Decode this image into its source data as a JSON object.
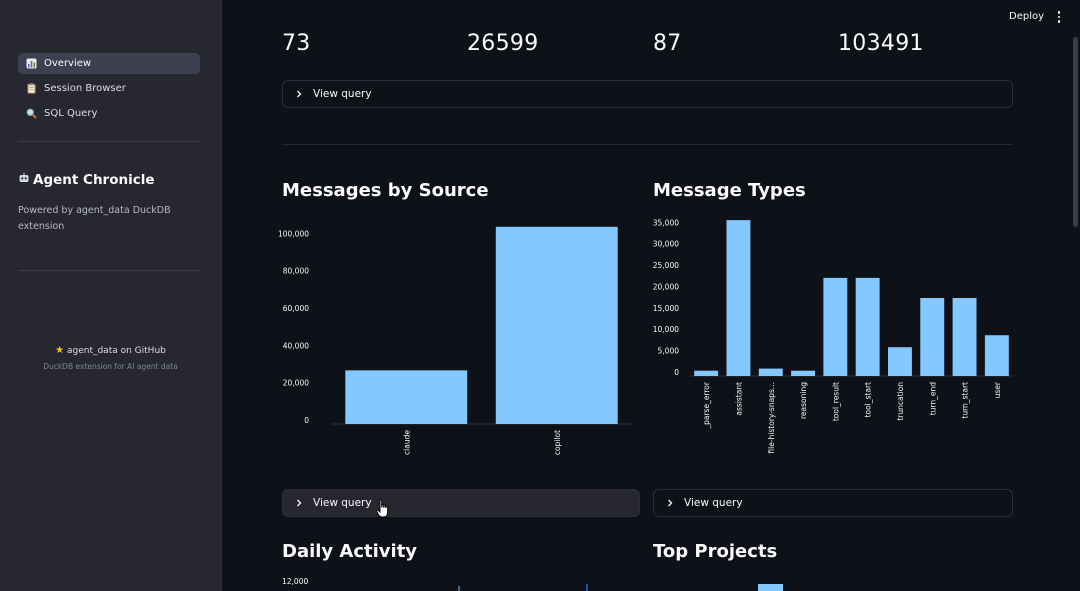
{
  "sidebar": {
    "nav": [
      {
        "label": "Overview",
        "icon": "chart-icon",
        "active": true
      },
      {
        "label": "Session Browser",
        "icon": "clipboard-icon",
        "active": false
      },
      {
        "label": "SQL Query",
        "icon": "magnifier-icon",
        "active": false
      }
    ],
    "brand_title": "Agent Chronicle",
    "brand_icon": "robot-icon",
    "brand_subtitle": "Powered by agent_data DuckDB extension",
    "github_link": "agent_data on GitHub",
    "github_icon": "star-icon",
    "github_subtitle": "DuckDB extension for AI agent data"
  },
  "header": {
    "deploy_label": "Deploy",
    "menu_icon": "kebab-menu-icon"
  },
  "metrics": [
    "73",
    "26599",
    "87",
    "103491"
  ],
  "expanders": {
    "metrics_query": "View query",
    "source_query": "View query",
    "types_query": "View query"
  },
  "sections": {
    "messages_by_source": "Messages by Source",
    "message_types": "Message Types",
    "daily_activity": "Daily Activity",
    "top_projects": "Top Projects"
  },
  "colors": {
    "bar": "#83c9ff",
    "background": "#0e1117",
    "sidebar": "#262730"
  },
  "chart_data": [
    {
      "type": "bar",
      "title": "Messages by Source",
      "categories": [
        "claude",
        "copilot"
      ],
      "values": [
        26599,
        103491
      ],
      "yticks": [
        "0",
        "20,000",
        "40,000",
        "60,000",
        "80,000",
        "100,000"
      ],
      "ylim": [
        0,
        105000
      ],
      "grid": false
    },
    {
      "type": "bar",
      "title": "Message Types",
      "categories": [
        "_parse_error",
        "assistant",
        "file-history-snaps...",
        "reasoning",
        "tool_result",
        "tool_start",
        "truncation",
        "turn_end",
        "turn_start",
        "user"
      ],
      "values": [
        300,
        35500,
        800,
        300,
        22000,
        22000,
        5800,
        17300,
        17300,
        8600
      ],
      "yticks": [
        "0",
        "5,000",
        "10,000",
        "15,000",
        "20,000",
        "25,000",
        "30,000",
        "35,000"
      ],
      "ylim": [
        0,
        36000
      ],
      "grid": false
    },
    {
      "type": "line",
      "title": "Daily Activity",
      "yticks": [
        "12,000"
      ],
      "values": []
    },
    {
      "type": "bar",
      "title": "Top Projects",
      "values": []
    }
  ]
}
